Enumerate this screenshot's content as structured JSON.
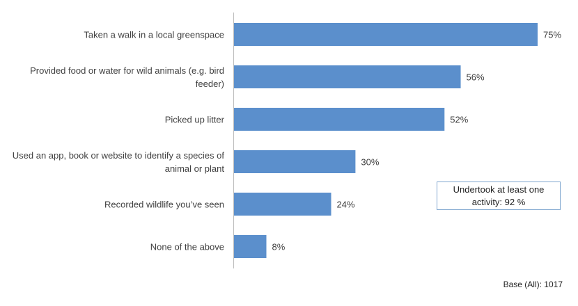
{
  "chart_data": {
    "type": "bar",
    "orientation": "horizontal",
    "categories": [
      "Taken a walk in a local greenspace",
      "Provided food or water for wild animals (e.g. bird feeder)",
      "Picked up litter",
      "Used an app, book or website to identify a species of animal or plant",
      "Recorded wildlife you’ve seen",
      "None of the above"
    ],
    "values": [
      75,
      56,
      52,
      30,
      24,
      8
    ],
    "value_labels": [
      "75%",
      "56%",
      "52%",
      "30%",
      "24%",
      "8%"
    ],
    "color": "#5b8fcc",
    "annotation": "Undertook at least one activity: 92 %",
    "note": "Base (All): 1017"
  }
}
